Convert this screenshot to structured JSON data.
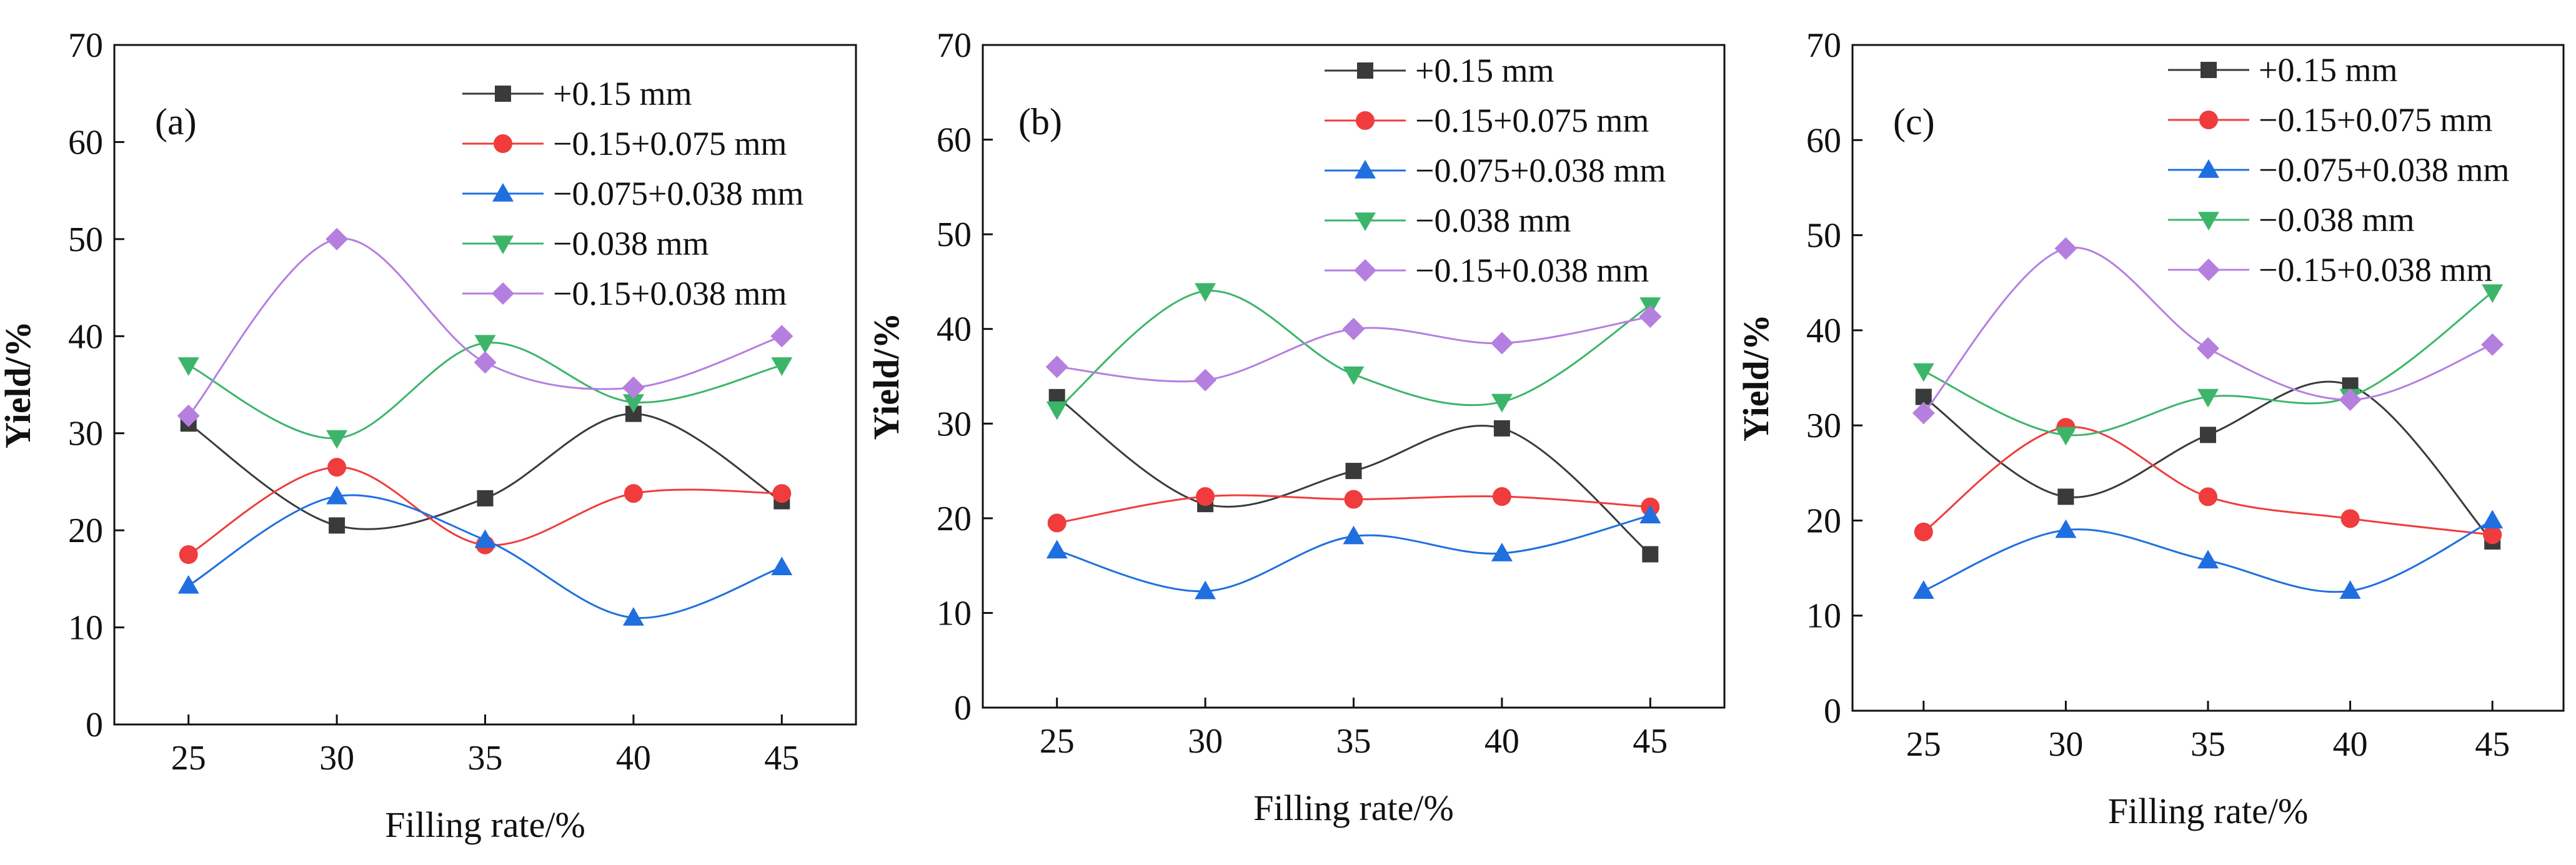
{
  "figure": {
    "xlabel": "Filling rate/%",
    "ylabel": "Yield/%"
  },
  "chart_data": [
    {
      "type": "line",
      "panel_label": "(a)",
      "title": "",
      "xlabel": "Filling rate/%",
      "ylabel": "Yield/%",
      "x": [
        25,
        30,
        35,
        40,
        45
      ],
      "ylim": [
        0,
        70
      ],
      "yticks": [
        0,
        10,
        20,
        30,
        40,
        50,
        60,
        70
      ],
      "legend_position": "top-right",
      "series": [
        {
          "name": "+0.15 mm",
          "marker": "square",
          "color": "#3a3a3a",
          "values": [
            31.0,
            20.5,
            23.3,
            32.0,
            23.0
          ]
        },
        {
          "name": "−0.15+0.075 mm",
          "marker": "circle",
          "color": "#f03c3c",
          "values": [
            17.5,
            26.5,
            18.5,
            23.8,
            23.8
          ]
        },
        {
          "name": "−0.075+0.038 mm",
          "marker": "triangle-up",
          "color": "#1f6fe0",
          "values": [
            14.3,
            23.5,
            19.0,
            11.0,
            16.2
          ]
        },
        {
          "name": "−0.038 mm",
          "marker": "triangle-down",
          "color": "#3cb56a",
          "values": [
            37.0,
            29.5,
            39.3,
            33.2,
            37.0
          ]
        },
        {
          "name": "−0.15+0.038 mm",
          "marker": "diamond",
          "color": "#b57fe0",
          "values": [
            31.8,
            50.0,
            37.3,
            34.7,
            40.0
          ]
        }
      ]
    },
    {
      "type": "line",
      "panel_label": "(b)",
      "title": "",
      "xlabel": "Filling rate/%",
      "ylabel": "Yield/%",
      "x": [
        25,
        30,
        35,
        40,
        45
      ],
      "ylim": [
        0,
        70
      ],
      "yticks": [
        0,
        10,
        20,
        30,
        40,
        50,
        60,
        70
      ],
      "legend_position": "top-right",
      "series": [
        {
          "name": "+0.15 mm",
          "marker": "square",
          "color": "#3a3a3a",
          "values": [
            32.8,
            21.5,
            25.0,
            29.5,
            16.2
          ]
        },
        {
          "name": "−0.15+0.075 mm",
          "marker": "circle",
          "color": "#f03c3c",
          "values": [
            19.5,
            22.3,
            22.0,
            22.3,
            21.2
          ]
        },
        {
          "name": "−0.075+0.038 mm",
          "marker": "triangle-up",
          "color": "#1f6fe0",
          "values": [
            16.6,
            12.3,
            18.1,
            16.3,
            20.3
          ]
        },
        {
          "name": "−0.038 mm",
          "marker": "triangle-down",
          "color": "#3cb56a",
          "values": [
            31.5,
            44.0,
            35.2,
            32.3,
            42.5
          ]
        },
        {
          "name": "−0.15+0.038 mm",
          "marker": "diamond",
          "color": "#b57fe0",
          "values": [
            36.0,
            34.6,
            40.0,
            38.5,
            41.3
          ]
        }
      ]
    },
    {
      "type": "line",
      "panel_label": "(c)",
      "title": "",
      "xlabel": "Filling rate/%",
      "ylabel": "Yield/%",
      "x": [
        25,
        30,
        35,
        40,
        45
      ],
      "ylim": [
        0,
        70
      ],
      "yticks": [
        0,
        10,
        20,
        30,
        40,
        50,
        60,
        70
      ],
      "legend_position": "top-right",
      "series": [
        {
          "name": "+0.15 mm",
          "marker": "square",
          "color": "#3a3a3a",
          "values": [
            33.0,
            22.5,
            29.0,
            34.2,
            17.8
          ]
        },
        {
          "name": "−0.15+0.075 mm",
          "marker": "circle",
          "color": "#f03c3c",
          "values": [
            18.8,
            29.8,
            22.5,
            20.2,
            18.5
          ]
        },
        {
          "name": "−0.075+0.038 mm",
          "marker": "triangle-up",
          "color": "#1f6fe0",
          "values": [
            12.6,
            19.0,
            15.8,
            12.6,
            20.0
          ]
        },
        {
          "name": "−0.038 mm",
          "marker": "triangle-down",
          "color": "#3cb56a",
          "values": [
            35.7,
            29.0,
            33.0,
            33.0,
            44.0
          ]
        },
        {
          "name": "−0.15+0.038 mm",
          "marker": "diamond",
          "color": "#b57fe0",
          "values": [
            31.3,
            48.6,
            38.1,
            32.7,
            38.5
          ]
        }
      ]
    }
  ]
}
